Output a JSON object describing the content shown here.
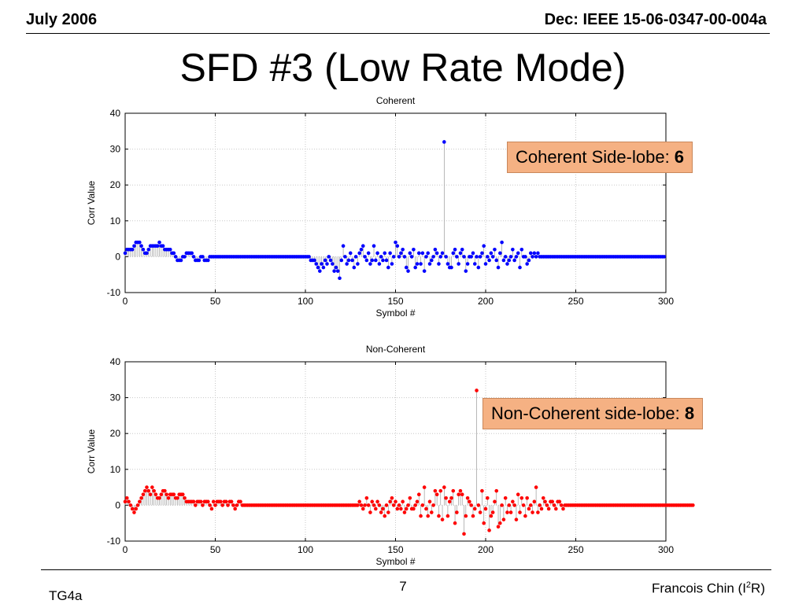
{
  "header": {
    "date": "July 2006",
    "doc": "Dec: IEEE 15-06-0347-00-004a"
  },
  "slide_title": "SFD #3 (Low Rate Mode)",
  "callouts": {
    "coherent_label": "Coherent Side-lobe: ",
    "coherent_value": "6",
    "noncoherent_label": "Non-Coherent side-lobe: ",
    "noncoherent_value": "8"
  },
  "footer": {
    "left": "TG4a",
    "page": "7",
    "author_pre": "Francois Chin (I",
    "author_sup": "2",
    "author_post": "R)"
  },
  "colors": {
    "coherent": "#0000ff",
    "noncoherent": "#ff0000",
    "stem_gray": "#9a9a9a",
    "callout": "#f5b183"
  },
  "chart_data": [
    {
      "type": "scatter",
      "title": "Coherent",
      "xlabel": "Symbol #",
      "ylabel": "Corr Value",
      "xlim": [
        0,
        300
      ],
      "ylim": [
        -10,
        40
      ],
      "xticks": [
        0,
        50,
        100,
        150,
        200,
        250,
        300
      ],
      "yticks": [
        -10,
        0,
        10,
        20,
        30,
        40
      ],
      "grid": true,
      "series": [
        {
          "values": [
            1,
            2,
            2,
            2,
            2,
            3,
            4,
            4,
            4,
            3,
            2,
            1,
            1,
            2,
            3,
            3,
            3,
            3,
            3,
            4,
            3,
            3,
            2,
            2,
            2,
            2,
            1,
            1,
            0,
            -1,
            -1,
            -1,
            0,
            0,
            1,
            1,
            1,
            1,
            0,
            -1,
            -1,
            -1,
            0,
            0,
            -1,
            -1,
            -1,
            0,
            0,
            0,
            0,
            0,
            0,
            0,
            0,
            0,
            0,
            0,
            0,
            0,
            0,
            0,
            0,
            0,
            0,
            0,
            0,
            0,
            0,
            0,
            0,
            0,
            0,
            0,
            0,
            0,
            0,
            0,
            0,
            0,
            0,
            0,
            0,
            0,
            0,
            0,
            0,
            0,
            0,
            0,
            0,
            0,
            0,
            0,
            0,
            0,
            0,
            0,
            0,
            0,
            0,
            0,
            0,
            -1,
            -1,
            -1,
            -2,
            -3,
            -4,
            -2,
            -3,
            -1,
            -2,
            0,
            -1,
            -2,
            -4,
            -3,
            -4,
            -6,
            -1,
            3,
            0,
            -2,
            -1,
            1,
            -1,
            -3,
            0,
            -2,
            1,
            2,
            3,
            0,
            -1,
            1,
            -2,
            -1,
            3,
            -1,
            1,
            -2,
            0,
            -1,
            1,
            -1,
            -3,
            1,
            -2,
            0,
            4,
            3,
            0,
            1,
            2,
            0,
            -3,
            -4,
            1,
            0,
            2,
            -3,
            -2,
            1,
            -2,
            1,
            -4,
            0,
            1,
            -2,
            -1,
            0,
            2,
            1,
            -2,
            0,
            1,
            32,
            0,
            -2,
            -3,
            -3,
            1,
            2,
            0,
            -2,
            1,
            2,
            0,
            -4,
            -2,
            0,
            0,
            1,
            -2,
            0,
            -3,
            0,
            1,
            3,
            -2,
            0,
            -1,
            1,
            0,
            2,
            -1,
            -3,
            1,
            4,
            -1,
            0,
            -2,
            -1,
            0,
            2,
            -1,
            0,
            1,
            -3,
            2,
            0,
            0,
            -2,
            -1,
            1,
            0,
            1,
            0,
            1,
            0,
            0,
            0,
            0,
            0,
            0,
            0,
            0,
            0,
            0,
            0,
            0,
            0,
            0,
            0,
            0,
            0,
            0,
            0,
            0,
            0,
            0,
            0,
            0,
            0,
            0,
            0,
            0,
            0,
            0,
            0,
            0,
            0,
            0,
            0,
            0,
            0,
            0,
            0,
            0,
            0,
            0,
            0,
            0,
            0,
            0,
            0,
            0,
            0,
            0,
            0,
            0,
            0,
            0,
            0,
            0,
            0,
            0,
            0,
            0,
            0,
            0,
            0,
            0,
            0,
            0,
            0,
            0,
            0,
            0
          ]
        }
      ]
    },
    {
      "type": "scatter",
      "title": "Non-Coherent",
      "xlabel": "Symbol #",
      "ylabel": "Corr Value",
      "xlim": [
        0,
        300
      ],
      "ylim": [
        -10,
        40
      ],
      "xticks": [
        0,
        50,
        100,
        150,
        200,
        250,
        300
      ],
      "yticks": [
        -10,
        0,
        10,
        20,
        30,
        40
      ],
      "grid": true,
      "series": [
        {
          "values": [
            1,
            2,
            1,
            0,
            -1,
            -2,
            -1,
            0,
            1,
            2,
            3,
            4,
            5,
            4,
            3,
            5,
            4,
            3,
            2,
            2,
            3,
            4,
            4,
            3,
            2,
            3,
            3,
            3,
            2,
            2,
            3,
            3,
            3,
            2,
            1,
            1,
            1,
            1,
            1,
            0,
            1,
            1,
            1,
            0,
            1,
            1,
            1,
            0,
            -1,
            1,
            0,
            1,
            1,
            1,
            0,
            1,
            1,
            0,
            1,
            1,
            0,
            -1,
            0,
            1,
            1,
            0,
            0,
            0,
            0,
            0,
            0,
            0,
            0,
            0,
            0,
            0,
            0,
            0,
            0,
            0,
            0,
            0,
            0,
            0,
            0,
            0,
            0,
            0,
            0,
            0,
            0,
            0,
            0,
            0,
            0,
            0,
            0,
            0,
            0,
            0,
            0,
            0,
            0,
            0,
            0,
            0,
            0,
            0,
            0,
            0,
            0,
            0,
            0,
            0,
            0,
            0,
            0,
            0,
            0,
            0,
            0,
            0,
            0,
            0,
            0,
            0,
            0,
            0,
            0,
            0,
            1,
            0,
            -1,
            0,
            2,
            0,
            -2,
            1,
            0,
            -1,
            1,
            0,
            -2,
            -1,
            -3,
            0,
            -2,
            1,
            2,
            0,
            1,
            -1,
            0,
            -1,
            1,
            -2,
            -1,
            0,
            2,
            -1,
            -1,
            0,
            1,
            3,
            -3,
            0,
            5,
            -1,
            -3,
            1,
            -2,
            0,
            4,
            3,
            -3,
            4,
            -4,
            5,
            2,
            -3,
            1,
            2,
            4,
            -5,
            -2,
            3,
            4,
            3,
            -8,
            -3,
            2,
            1,
            0,
            -3,
            -1,
            32,
            0,
            -2,
            4,
            -5,
            -1,
            2,
            -7,
            -3,
            -2,
            1,
            4,
            -6,
            -5,
            0,
            -4,
            2,
            -2,
            0,
            -2,
            1,
            0,
            -4,
            3,
            -2,
            2,
            0,
            -3,
            2,
            -1,
            0,
            -2,
            1,
            5,
            -2,
            0,
            -1,
            2,
            1,
            0,
            -1,
            1,
            1,
            0,
            -1,
            1,
            1,
            0,
            -1,
            0,
            0,
            0,
            0,
            0,
            0,
            0,
            0,
            0,
            0,
            0,
            0,
            0,
            0,
            0,
            0,
            0,
            0,
            0,
            0,
            0,
            0,
            0,
            0,
            0,
            0,
            0,
            0,
            0,
            0,
            0,
            0,
            0,
            0,
            0,
            0,
            0,
            0,
            0,
            0,
            0,
            0,
            0,
            0,
            0,
            0,
            0,
            0,
            0,
            0,
            0,
            0,
            0,
            0,
            0,
            0,
            0,
            0,
            0,
            0,
            0,
            0,
            0,
            0,
            0,
            0,
            0,
            0,
            0,
            0,
            0,
            0
          ]
        }
      ]
    }
  ]
}
